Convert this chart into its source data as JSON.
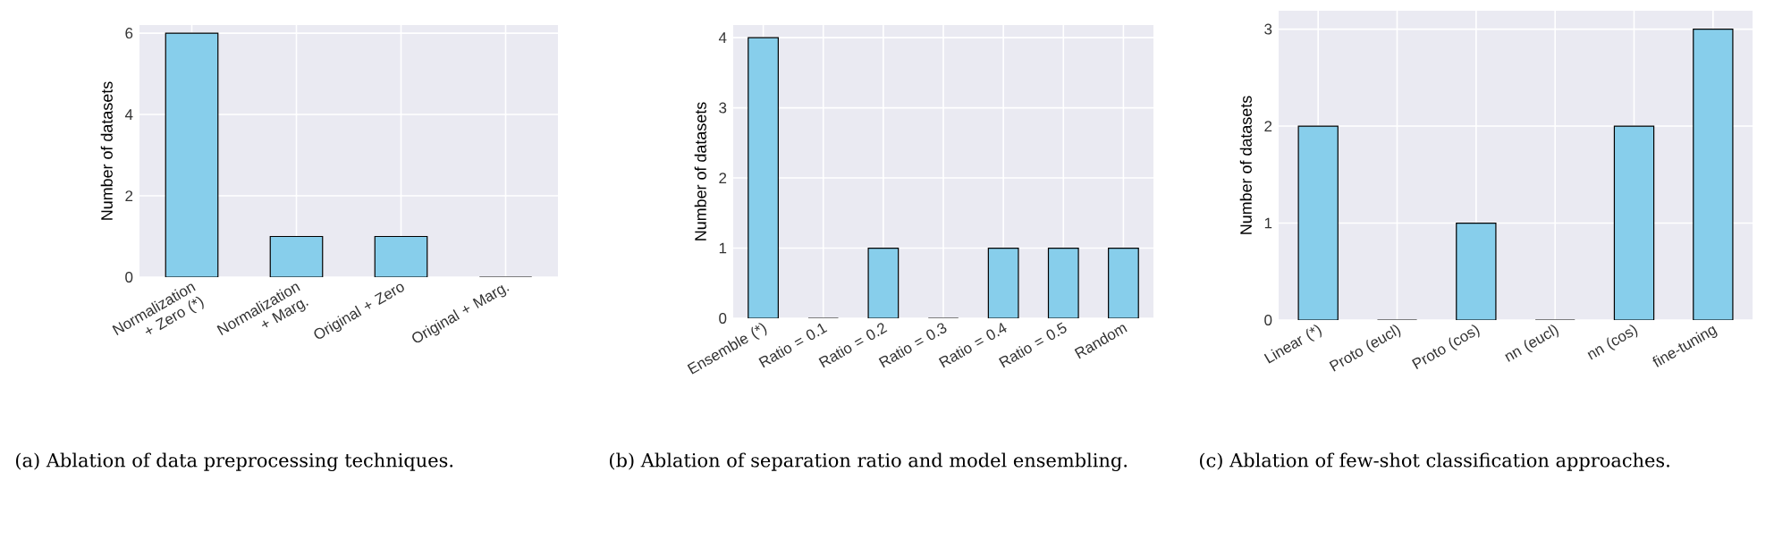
{
  "chart_data": [
    {
      "type": "bar",
      "ylabel": "Number of datasets",
      "categories": [
        "Normalization + Zero (*)",
        "Normalization + Marg.",
        "Original + Zero",
        "Original + Marg."
      ],
      "values": [
        6,
        1,
        1,
        0
      ],
      "color": "#87ceeb",
      "ylim": [
        0,
        6.2
      ],
      "yticks": [
        0,
        2,
        4,
        6
      ],
      "grid": true,
      "annotations": [
        "(a) Ablation of data preprocessing techniques."
      ]
    },
    {
      "type": "bar",
      "ylabel": "Number of datasets",
      "categories": [
        "Ensemble (*)",
        "Ratio = 0.1",
        "Ratio = 0.2",
        "Ratio = 0.3",
        "Ratio = 0.4",
        "Ratio = 0.5",
        "Random"
      ],
      "values": [
        4,
        0,
        1,
        0,
        1,
        1,
        1
      ],
      "color": "#87ceeb",
      "ylim": [
        0,
        4.18
      ],
      "yticks": [
        0,
        1,
        2,
        3,
        4
      ],
      "grid": true,
      "annotations": [
        "(b) Ablation of separation ratio and model ensembling."
      ]
    },
    {
      "type": "bar",
      "ylabel": "Number of datasets",
      "categories": [
        "Linear (*)",
        "Proto (eucl)",
        "Proto (cos)",
        "nn (eucl)",
        "nn (cos)",
        "fine-tuning"
      ],
      "values": [
        2,
        0,
        1,
        0,
        2,
        3
      ],
      "color": "#87ceeb",
      "ylim": [
        0,
        3.19
      ],
      "yticks": [
        0,
        1,
        2,
        3
      ],
      "grid": true,
      "annotations": [
        "(c) Ablation of few-shot classification approaches."
      ]
    }
  ]
}
